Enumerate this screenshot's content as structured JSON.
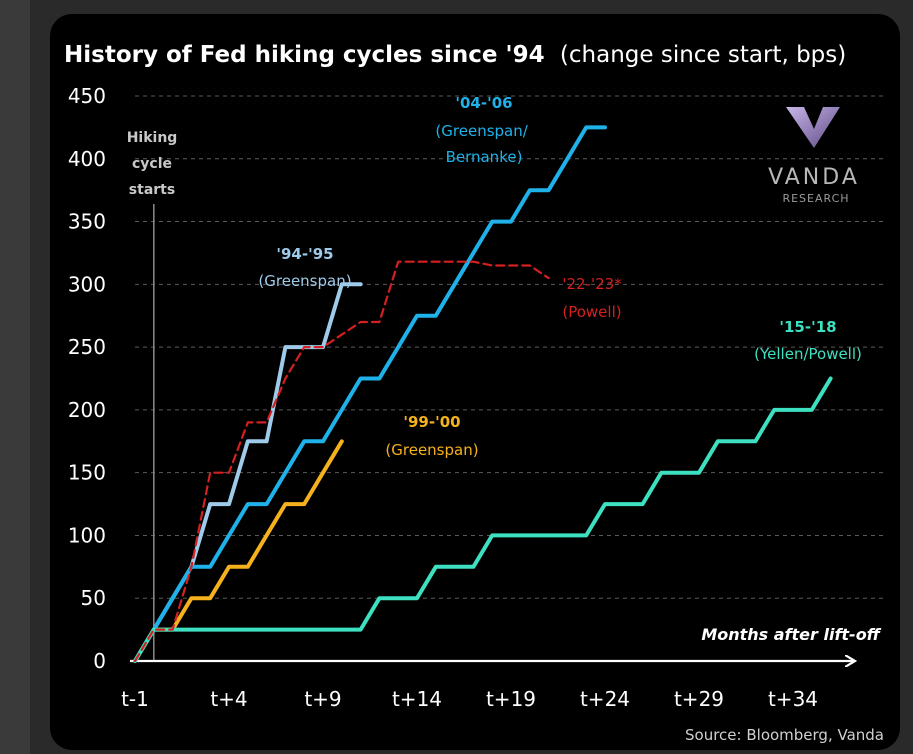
{
  "chart_data": {
    "type": "line",
    "title": "History of Fed hiking cycles since '94",
    "subtitle": "(change since start, bps)",
    "xlabel": "Months after lift-off",
    "ylabel": "",
    "x_ticks": [
      "t-1",
      "t+4",
      "t+9",
      "t+14",
      "t+19",
      "t+24",
      "t+29",
      "t+34"
    ],
    "y_ticks": [
      0,
      50,
      100,
      150,
      200,
      250,
      300,
      350,
      400,
      450
    ],
    "ylim": [
      0,
      450
    ],
    "xlim": [
      -1,
      38
    ],
    "grid": "horizontal-dashed",
    "marker_label": "Hiking cycle starts",
    "source": "Source: Bloomberg, Vanda",
    "logo": {
      "name": "VANDA",
      "sub": "RESEARCH"
    },
    "series": [
      {
        "name": "'94-'95",
        "sublabel": "(Greenspan)",
        "color": "#9ecbea",
        "dash": false,
        "x": [
          -1,
          0,
          1,
          2,
          3,
          4,
          5,
          6,
          7,
          8,
          9,
          10,
          11
        ],
        "values": [
          0,
          25,
          50,
          75,
          125,
          125,
          175,
          175,
          250,
          250,
          250,
          300,
          300
        ]
      },
      {
        "name": "'99-'00",
        "sublabel": "(Greenspan)",
        "color": "#f5b21c",
        "dash": false,
        "x": [
          -1,
          0,
          1,
          2,
          3,
          4,
          5,
          6,
          7,
          8,
          9,
          10
        ],
        "values": [
          0,
          25,
          25,
          50,
          50,
          75,
          75,
          100,
          125,
          125,
          150,
          175
        ]
      },
      {
        "name": "'04-'06",
        "sublabel": "(Greenspan/ Bernanke)",
        "color": "#1fb2ea",
        "dash": false,
        "x": [
          -1,
          0,
          1,
          2,
          3,
          4,
          5,
          6,
          7,
          8,
          9,
          10,
          11,
          12,
          13,
          14,
          15,
          16,
          17,
          18,
          19,
          20,
          21,
          22,
          23,
          24
        ],
        "values": [
          0,
          25,
          50,
          75,
          75,
          100,
          125,
          125,
          150,
          175,
          175,
          200,
          225,
          225,
          250,
          275,
          275,
          300,
          325,
          350,
          350,
          375,
          375,
          400,
          425,
          425
        ]
      },
      {
        "name": "'15-'18",
        "sublabel": "(Yellen/Powell)",
        "color": "#3de0c0",
        "dash": false,
        "x": [
          -1,
          0,
          11,
          12,
          13,
          14,
          15,
          16,
          17,
          18,
          19,
          20,
          21,
          22,
          23,
          24,
          25,
          26,
          27,
          28,
          29,
          30,
          31,
          32,
          33,
          34,
          35,
          36
        ],
        "values": [
          0,
          25,
          25,
          50,
          50,
          50,
          75,
          75,
          75,
          100,
          100,
          100,
          100,
          100,
          100,
          125,
          125,
          125,
          150,
          150,
          150,
          175,
          175,
          175,
          200,
          200,
          200,
          225
        ]
      },
      {
        "name": "'22-'23*",
        "sublabel": "(Powell)",
        "color": "#d42020",
        "dash": true,
        "x": [
          -1,
          0,
          1,
          2,
          3,
          4,
          5,
          6,
          7,
          8,
          9,
          10,
          11,
          12,
          13,
          14,
          15,
          16,
          17,
          18,
          19,
          20,
          21
        ],
        "values": [
          0,
          25,
          25,
          75,
          150,
          150,
          190,
          190,
          225,
          250,
          250,
          260,
          270,
          270,
          318,
          318,
          318,
          318,
          318,
          315,
          315,
          315,
          305
        ]
      }
    ]
  }
}
